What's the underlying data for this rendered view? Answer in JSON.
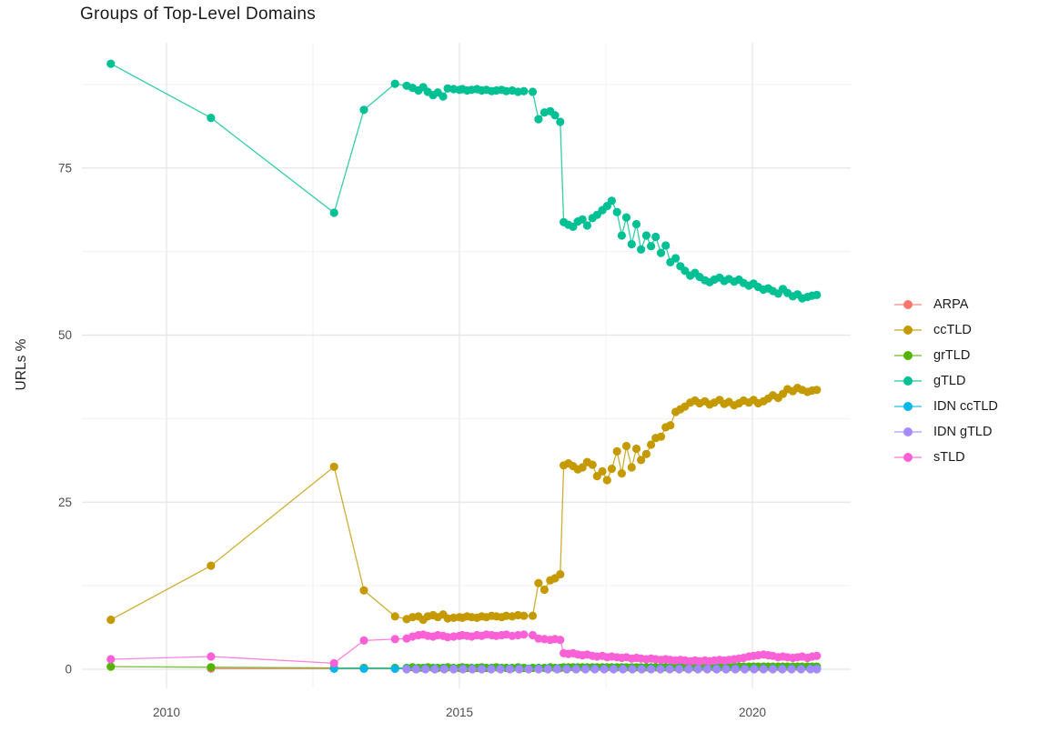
{
  "chart_data": {
    "type": "line",
    "title": "Groups of Top-Level Domains",
    "xlabel": "",
    "ylabel": "URLs %",
    "legend_position": "right",
    "grid": true,
    "x_axis": {
      "major_ticks": [
        2010,
        2015,
        2020
      ],
      "major_labels": [
        "2010",
        "2015",
        "2020"
      ],
      "minor_ticks": [
        2012.5,
        2017.5
      ],
      "range": [
        2008.56,
        2021.67
      ]
    },
    "y_axis": {
      "major_ticks": [
        0,
        25,
        50,
        75
      ],
      "major_labels": [
        "0",
        "25",
        "50",
        "75"
      ],
      "minor_ticks": [
        12.5,
        37.5,
        62.5,
        87.5
      ],
      "range": [
        -2.9,
        93.7
      ]
    },
    "x_sets": {
      "x_common": [
        2009.05,
        2010.76,
        2012.86,
        2013.37,
        2013.9,
        2014.1,
        2014.2,
        2014.3,
        2014.38,
        2014.46,
        2014.55,
        2014.63,
        2014.72,
        2014.8,
        2014.9,
        2015.0,
        2015.05,
        2015.13,
        2015.21,
        2015.3,
        2015.38,
        2015.46,
        2015.55,
        2015.63,
        2015.72,
        2015.8,
        2015.9,
        2016.0,
        2016.1,
        2016.25,
        2016.35,
        2016.45,
        2016.55,
        2016.63,
        2016.72,
        2016.78,
        2016.86,
        2016.94,
        2017.02,
        2017.1,
        2017.18,
        2017.27,
        2017.35,
        2017.44,
        2017.52,
        2017.6,
        2017.69,
        2017.77,
        2017.85,
        2017.94,
        2018.02,
        2018.1,
        2018.19,
        2018.27,
        2018.35,
        2018.44,
        2018.52,
        2018.6,
        2018.69,
        2018.77,
        2018.85,
        2018.94,
        2019.02,
        2019.1,
        2019.19,
        2019.27,
        2019.35,
        2019.44,
        2019.52,
        2019.6,
        2019.69,
        2019.77,
        2019.85,
        2019.94,
        2020.02,
        2020.1,
        2020.19,
        2020.27,
        2020.35,
        2020.44,
        2020.52,
        2020.6,
        2020.69,
        2020.77,
        2020.85,
        2020.94,
        2021.02,
        2021.1
      ],
      "x_arpa": [
        2010.76,
        2012.86,
        2013.37,
        2013.9,
        2014.1,
        2014.26,
        2014.42,
        2014.58,
        2014.74,
        2014.9,
        2015.06,
        2015.22,
        2015.38,
        2015.54,
        2015.7,
        2015.86,
        2016.02,
        2016.18,
        2016.35,
        2016.51,
        2016.67,
        2016.83,
        2016.99,
        2017.15,
        2017.31,
        2017.47,
        2017.63,
        2017.79,
        2017.95,
        2018.11,
        2018.27,
        2018.43,
        2018.59,
        2018.75,
        2018.91,
        2019.07,
        2019.23,
        2019.39,
        2019.55,
        2019.71,
        2019.87,
        2020.03,
        2020.19,
        2020.35,
        2020.51,
        2020.67,
        2020.83,
        2020.99,
        2021.1
      ],
      "x_idncc": [
        2012.86,
        2013.37,
        2013.9,
        2014.1,
        2014.26,
        2014.42,
        2014.58,
        2014.74,
        2014.9,
        2015.06,
        2015.22,
        2015.38,
        2015.54,
        2015.7,
        2015.86,
        2016.02,
        2016.18,
        2016.35,
        2016.51,
        2016.67,
        2016.83,
        2016.99,
        2017.15,
        2017.31,
        2017.47,
        2017.63,
        2017.79,
        2017.95,
        2018.11,
        2018.27,
        2018.43,
        2018.59,
        2018.75,
        2018.91,
        2019.07,
        2019.23,
        2019.39,
        2019.55,
        2019.71,
        2019.87,
        2020.03,
        2020.19,
        2020.35,
        2020.51,
        2020.67,
        2020.83,
        2020.99,
        2021.1
      ],
      "x_idng": [
        2014.1,
        2014.26,
        2014.42,
        2014.58,
        2014.74,
        2014.9,
        2015.06,
        2015.22,
        2015.38,
        2015.54,
        2015.7,
        2015.86,
        2016.02,
        2016.18,
        2016.35,
        2016.51,
        2016.67,
        2016.83,
        2016.99,
        2017.15,
        2017.31,
        2017.47,
        2017.63,
        2017.79,
        2017.95,
        2018.11,
        2018.27,
        2018.43,
        2018.59,
        2018.75,
        2018.91,
        2019.07,
        2019.23,
        2019.39,
        2019.55,
        2019.71,
        2019.87,
        2020.03,
        2020.19,
        2020.35,
        2020.51,
        2020.67,
        2020.83,
        2020.99,
        2021.1
      ]
    },
    "series": [
      {
        "name": "ARPA",
        "color": "#F8766D",
        "x_key": "x_arpa",
        "value": 0.1
      },
      {
        "name": "ccTLD",
        "color": "#C49A00",
        "x_key": "x_common",
        "values": [
          7.4,
          15.5,
          30.3,
          11.8,
          7.9,
          7.5,
          7.8,
          7.9,
          7.4,
          7.9,
          8.1,
          7.8,
          8.2,
          7.6,
          7.7,
          7.8,
          7.7,
          7.9,
          7.8,
          7.7,
          7.9,
          7.8,
          8.0,
          7.9,
          7.8,
          8.0,
          7.9,
          8.1,
          8.0,
          8.0,
          12.9,
          11.9,
          13.3,
          13.6,
          14.2,
          30.5,
          30.8,
          30.4,
          29.9,
          30.2,
          31.0,
          30.6,
          28.9,
          29.6,
          28.3,
          30.0,
          32.6,
          29.3,
          33.4,
          30.2,
          33.0,
          31.3,
          32.2,
          33.6,
          34.6,
          34.8,
          36.2,
          36.5,
          38.5,
          38.9,
          39.3,
          39.9,
          40.2,
          39.8,
          40.1,
          39.6,
          39.9,
          40.3,
          39.7,
          40.0,
          39.5,
          39.8,
          40.2,
          39.9,
          40.3,
          39.8,
          40.1,
          40.5,
          41.0,
          40.6,
          41.2,
          41.9,
          41.6,
          42.1,
          41.8,
          41.5,
          41.7,
          41.8
        ]
      },
      {
        "name": "grTLD",
        "color": "#53B400",
        "x_key": "x_common",
        "values": [
          0.4,
          0.3,
          0.2,
          0.2,
          0.2,
          0.2,
          0.3,
          0.2,
          0.2,
          0.3,
          0.2,
          0.2,
          0.2,
          0.3,
          0.2,
          0.2,
          0.3,
          0.2,
          0.2,
          0.2,
          0.3,
          0.2,
          0.2,
          0.3,
          0.2,
          0.2,
          0.2,
          0.3,
          0.2,
          0.2,
          0.2,
          0.2,
          0.3,
          0.2,
          0.2,
          0.3,
          0.3,
          0.3,
          0.3,
          0.3,
          0.3,
          0.3,
          0.3,
          0.3,
          0.3,
          0.3,
          0.3,
          0.3,
          0.3,
          0.3,
          0.3,
          0.3,
          0.3,
          0.3,
          0.3,
          0.3,
          0.3,
          0.3,
          0.3,
          0.3,
          0.3,
          0.3,
          0.3,
          0.3,
          0.3,
          0.3,
          0.3,
          0.3,
          0.3,
          0.3,
          0.4,
          0.4,
          0.4,
          0.4,
          0.4,
          0.4,
          0.4,
          0.4,
          0.4,
          0.4,
          0.4,
          0.4,
          0.4,
          0.4,
          0.4,
          0.4,
          0.4,
          0.4
        ]
      },
      {
        "name": "gTLD",
        "color": "#00C094",
        "x_key": "x_common",
        "values": [
          90.6,
          82.5,
          68.3,
          83.7,
          87.6,
          87.3,
          87.0,
          86.6,
          87.1,
          86.4,
          85.9,
          86.3,
          85.7,
          86.9,
          86.8,
          86.7,
          86.8,
          86.6,
          86.7,
          86.8,
          86.6,
          86.7,
          86.5,
          86.6,
          86.7,
          86.5,
          86.6,
          86.4,
          86.5,
          86.4,
          82.3,
          83.3,
          83.5,
          82.9,
          81.9,
          66.9,
          66.5,
          66.2,
          67.0,
          67.3,
          66.4,
          67.5,
          68.0,
          68.7,
          69.3,
          70.1,
          68.4,
          64.9,
          67.6,
          63.6,
          66.6,
          62.8,
          64.9,
          63.3,
          64.7,
          62.3,
          63.4,
          60.9,
          61.5,
          60.3,
          59.6,
          58.9,
          59.3,
          58.7,
          58.2,
          57.9,
          58.3,
          58.6,
          58.1,
          58.4,
          58.0,
          58.3,
          57.8,
          57.4,
          57.7,
          57.2,
          56.8,
          57.0,
          56.6,
          56.2,
          56.9,
          56.3,
          55.8,
          56.1,
          55.5,
          55.7,
          55.9,
          56.0
        ]
      },
      {
        "name": "IDN ccTLD",
        "color": "#00B6EB",
        "x_key": "x_idncc",
        "value": 0.08
      },
      {
        "name": "IDN gTLD",
        "color": "#A58AFF",
        "x_key": "x_idng",
        "value": 0.0
      },
      {
        "name": "sTLD",
        "color": "#FB61D7",
        "x_key": "x_common",
        "values": [
          1.5,
          1.9,
          0.9,
          4.3,
          4.5,
          4.6,
          4.9,
          5.1,
          5.2,
          5.0,
          4.9,
          5.1,
          5.0,
          4.8,
          4.9,
          5.0,
          5.1,
          5.0,
          4.9,
          5.1,
          5.0,
          5.2,
          5.1,
          5.0,
          5.1,
          5.2,
          5.0,
          5.1,
          5.2,
          5.1,
          4.6,
          4.5,
          4.4,
          4.5,
          4.4,
          2.4,
          2.3,
          2.4,
          2.2,
          2.1,
          2.2,
          2.0,
          1.9,
          2.0,
          1.8,
          1.9,
          1.8,
          1.7,
          1.8,
          1.6,
          1.7,
          1.6,
          1.5,
          1.6,
          1.5,
          1.4,
          1.5,
          1.4,
          1.3,
          1.4,
          1.3,
          1.2,
          1.3,
          1.2,
          1.3,
          1.2,
          1.3,
          1.4,
          1.3,
          1.4,
          1.5,
          1.6,
          1.7,
          1.9,
          2.0,
          2.1,
          2.2,
          2.1,
          2.0,
          1.8,
          1.9,
          1.8,
          1.7,
          1.8,
          1.9,
          1.7,
          1.9,
          2.0
        ]
      }
    ],
    "style": {
      "grid_major_color": "#e5e5e5",
      "grid_minor_color": "#f0f0f0",
      "tick_label_color": "#4d4d4d",
      "title_color": "#1a1a1a",
      "point_radius": 4.6,
      "line_width": 1.3
    }
  }
}
